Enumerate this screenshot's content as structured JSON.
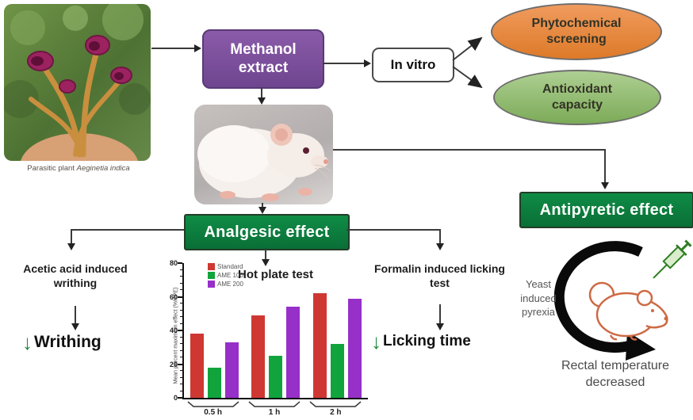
{
  "figure": {
    "plant_caption": {
      "prefix": "Parasitic plant",
      "species": "Aeginetia indica"
    },
    "nodes": {
      "methanol_extract": "Methanol extract",
      "in_vitro": "In vitro",
      "phytochemical": "Phytochemical screening",
      "antioxidant": "Antioxidant capacity",
      "analgesic": "Analgesic effect",
      "antipyretic": "Antipyretic effect"
    },
    "branches": {
      "acetic": {
        "label": "Acetic acid induced writhing",
        "result": "Writhing"
      },
      "formalin": {
        "label": "Formalin induced licking test",
        "result": "Licking time"
      },
      "pyrexia": {
        "label": "Yeast induced pyrexia",
        "result": "Rectal temperature decreased"
      }
    },
    "icons": {
      "decrease": "↓"
    }
  },
  "colors": {
    "purple_box": "#7a4b98",
    "green_box": "#0b7f3e",
    "orange_ellipse": "#e0812f",
    "green_ellipse": "#8fb86c",
    "decrease_green": "#1d8a3c",
    "standard_bar": "#cf3832",
    "ame100_bar": "#11a43c",
    "ame200_bar": "#9630c8"
  },
  "chart_data": {
    "type": "bar",
    "title": "Hot plate test",
    "ylabel": "Mean percent maximum effect (%MPE)",
    "categories": [
      "0.5 h",
      "1 h",
      "2 h"
    ],
    "series": [
      {
        "name": "Standard",
        "color": "#cf3832",
        "values": [
          38,
          49,
          62
        ]
      },
      {
        "name": "AME 100",
        "color": "#11a43c",
        "values": [
          18,
          25,
          32
        ]
      },
      {
        "name": "AME 200",
        "color": "#9630c8",
        "values": [
          33,
          54,
          59
        ]
      }
    ],
    "ylim": [
      0,
      80
    ],
    "yticks": [
      0,
      20,
      40,
      60,
      80
    ],
    "legend_position": "top-left",
    "grid": false
  }
}
